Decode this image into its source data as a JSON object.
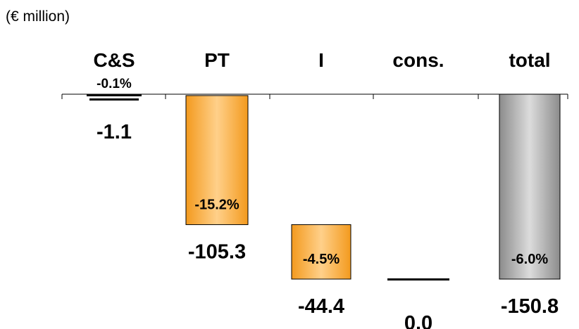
{
  "unit_label": "(€ million)",
  "chart_data": {
    "type": "waterfall",
    "categories": [
      "C&S",
      "PT",
      "I",
      "cons.",
      "total"
    ],
    "values": [
      -1.1,
      -105.3,
      -44.4,
      0.0,
      -150.8
    ],
    "value_labels": [
      "-1.1",
      "-105.3",
      "-44.4",
      "0.0",
      "-150.8"
    ],
    "percent_labels": [
      "-0.1%",
      "-15.2%",
      "-4.5%",
      "",
      "-6.0%"
    ],
    "bar_kinds": [
      "delta",
      "delta",
      "delta",
      "delta",
      "total"
    ],
    "colors": {
      "delta_light": "#ffd08a",
      "delta_dark": "#f39a1e",
      "total_light": "#dcdcdc",
      "total_dark": "#8c8c8c",
      "outline": "#000000",
      "axis": "#000000"
    }
  }
}
